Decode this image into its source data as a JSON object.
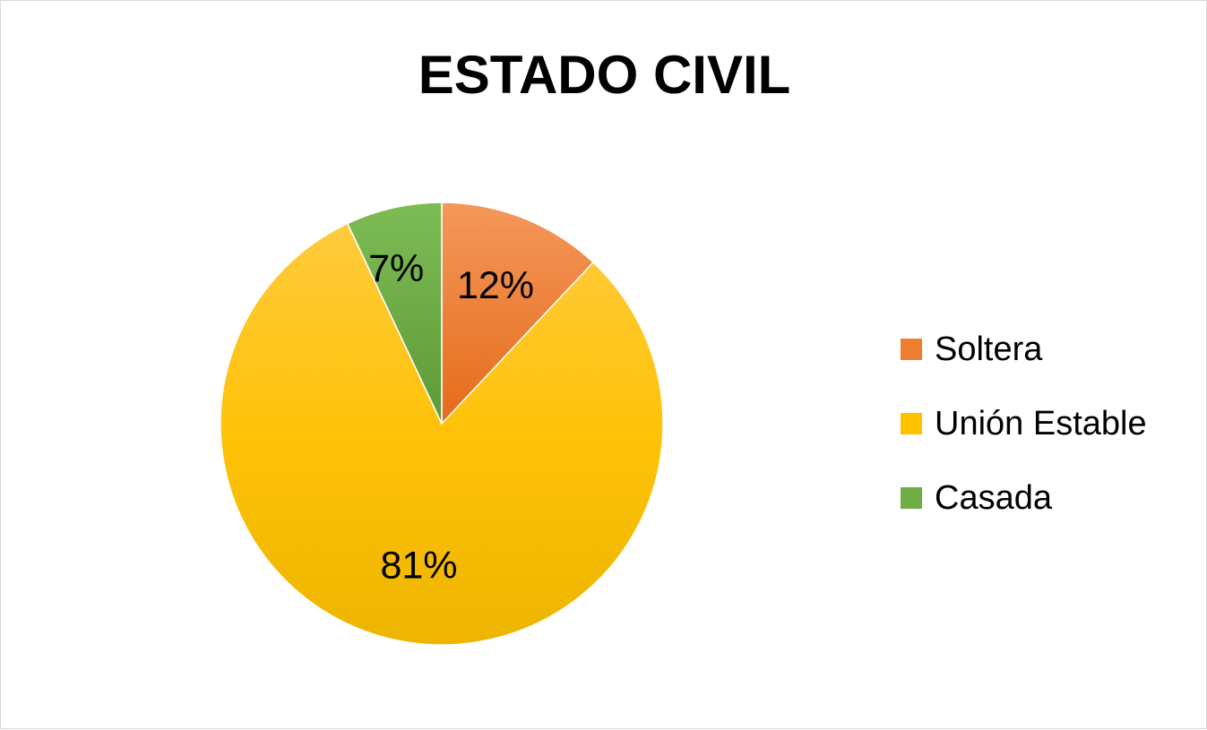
{
  "chart_data": {
    "type": "pie",
    "title": "ESTADO CIVIL",
    "categories": [
      "Soltera",
      "Unión Estable",
      "Casada"
    ],
    "values": [
      12,
      81,
      7
    ],
    "labels": [
      "12%",
      "81%",
      "7%"
    ],
    "colors": [
      "#ED7D31",
      "#FFC000",
      "#70AD47"
    ],
    "legend_position": "right"
  }
}
